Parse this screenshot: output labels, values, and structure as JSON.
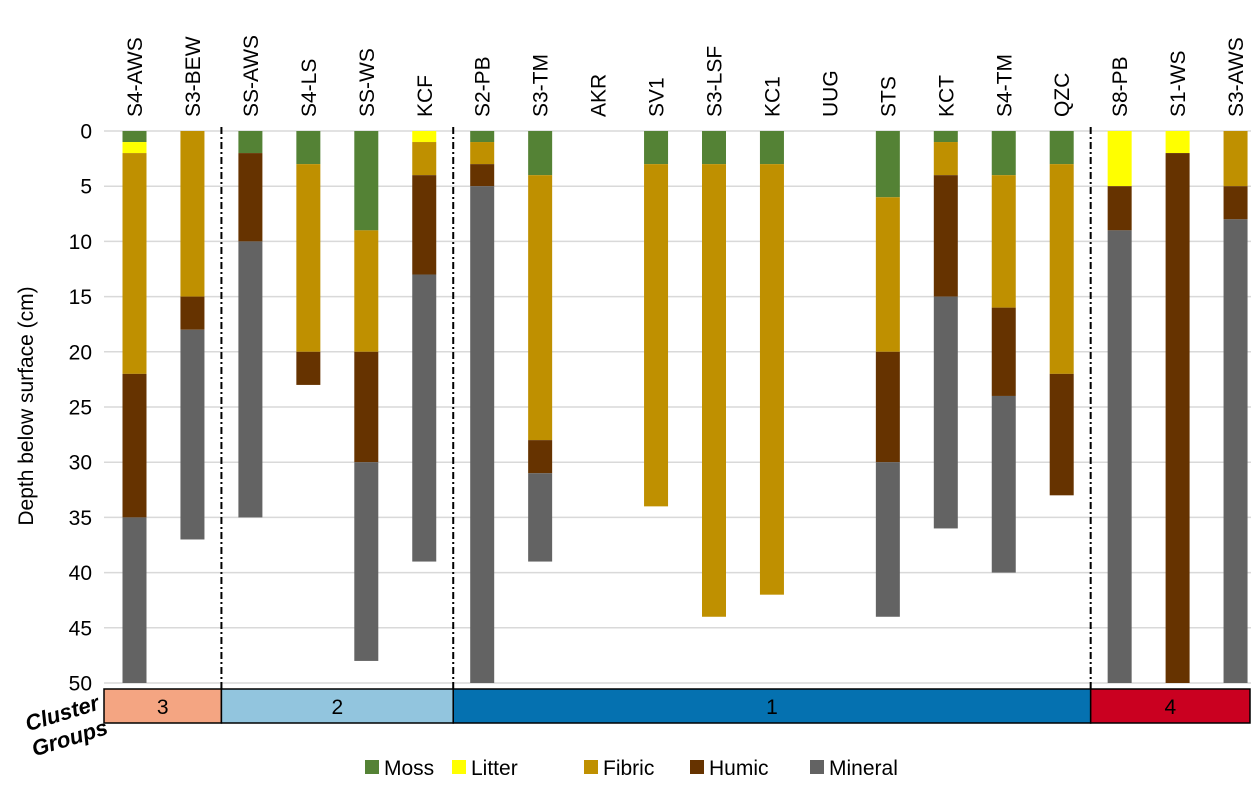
{
  "chart_data": {
    "type": "bar",
    "subtype": "stacked-depth-profile",
    "ylabel": "Depth below surface (cm)",
    "y_axis_inverted": true,
    "ylim": [
      0,
      50
    ],
    "yticks": [
      0,
      5,
      10,
      15,
      20,
      25,
      30,
      35,
      40,
      45,
      50
    ],
    "grid": true,
    "legend_position": "bottom",
    "categories": [
      "S4-AWS",
      "S3-BEW",
      "SS-AWS",
      "S4-LS",
      "SS-WS",
      "KCF",
      "S2-PB",
      "S3-TM",
      "AKR",
      "SV1",
      "S3-LSF",
      "KC1",
      "UUG",
      "STS",
      "KCT",
      "S4-TM",
      "QZC",
      "S8-PB",
      "S1-WS",
      "S3-AWS"
    ],
    "layers": [
      {
        "name": "Moss",
        "color": "#548235"
      },
      {
        "name": "Litter",
        "color": "#FFFF00"
      },
      {
        "name": "Fibric",
        "color": "#BF9000"
      },
      {
        "name": "Humic",
        "color": "#663300"
      },
      {
        "name": "Mineral",
        "color": "#636363"
      }
    ],
    "profiles": [
      [
        {
          "layer": "Moss",
          "top": 0,
          "bottom": 1
        },
        {
          "layer": "Litter",
          "top": 1,
          "bottom": 2
        },
        {
          "layer": "Fibric",
          "top": 2,
          "bottom": 22
        },
        {
          "layer": "Humic",
          "top": 22,
          "bottom": 35
        },
        {
          "layer": "Mineral",
          "top": 35,
          "bottom": 50
        }
      ],
      [
        {
          "layer": "Fibric",
          "top": 0,
          "bottom": 15
        },
        {
          "layer": "Humic",
          "top": 15,
          "bottom": 18
        },
        {
          "layer": "Mineral",
          "top": 18,
          "bottom": 37
        }
      ],
      [
        {
          "layer": "Moss",
          "top": 0,
          "bottom": 2
        },
        {
          "layer": "Humic",
          "top": 2,
          "bottom": 10
        },
        {
          "layer": "Mineral",
          "top": 10,
          "bottom": 35
        }
      ],
      [
        {
          "layer": "Moss",
          "top": 0,
          "bottom": 3
        },
        {
          "layer": "Fibric",
          "top": 3,
          "bottom": 20
        },
        {
          "layer": "Humic",
          "top": 20,
          "bottom": 23
        }
      ],
      [
        {
          "layer": "Moss",
          "top": 0,
          "bottom": 9
        },
        {
          "layer": "Fibric",
          "top": 9,
          "bottom": 20
        },
        {
          "layer": "Humic",
          "top": 20,
          "bottom": 30
        },
        {
          "layer": "Mineral",
          "top": 30,
          "bottom": 48
        }
      ],
      [
        {
          "layer": "Litter",
          "top": 0,
          "bottom": 1
        },
        {
          "layer": "Fibric",
          "top": 1,
          "bottom": 4
        },
        {
          "layer": "Humic",
          "top": 4,
          "bottom": 13
        },
        {
          "layer": "Mineral",
          "top": 13,
          "bottom": 39
        }
      ],
      [
        {
          "layer": "Moss",
          "top": 0,
          "bottom": 1
        },
        {
          "layer": "Fibric",
          "top": 1,
          "bottom": 3
        },
        {
          "layer": "Humic",
          "top": 3,
          "bottom": 5
        },
        {
          "layer": "Mineral",
          "top": 5,
          "bottom": 50
        }
      ],
      [
        {
          "layer": "Moss",
          "top": 0,
          "bottom": 4
        },
        {
          "layer": "Fibric",
          "top": 4,
          "bottom": 28
        },
        {
          "layer": "Humic",
          "top": 28,
          "bottom": 31
        },
        {
          "layer": "Mineral",
          "top": 31,
          "bottom": 39
        }
      ],
      [],
      [
        {
          "layer": "Moss",
          "top": 0,
          "bottom": 3
        },
        {
          "layer": "Fibric",
          "top": 3,
          "bottom": 34
        }
      ],
      [
        {
          "layer": "Moss",
          "top": 0,
          "bottom": 3
        },
        {
          "layer": "Fibric",
          "top": 3,
          "bottom": 44
        }
      ],
      [
        {
          "layer": "Moss",
          "top": 0,
          "bottom": 3
        },
        {
          "layer": "Fibric",
          "top": 3,
          "bottom": 42
        }
      ],
      [],
      [
        {
          "layer": "Moss",
          "top": 0,
          "bottom": 6
        },
        {
          "layer": "Fibric",
          "top": 6,
          "bottom": 20
        },
        {
          "layer": "Humic",
          "top": 20,
          "bottom": 30
        },
        {
          "layer": "Mineral",
          "top": 30,
          "bottom": 44
        }
      ],
      [
        {
          "layer": "Moss",
          "top": 0,
          "bottom": 1
        },
        {
          "layer": "Fibric",
          "top": 1,
          "bottom": 4
        },
        {
          "layer": "Humic",
          "top": 4,
          "bottom": 15
        },
        {
          "layer": "Mineral",
          "top": 15,
          "bottom": 36
        }
      ],
      [
        {
          "layer": "Moss",
          "top": 0,
          "bottom": 4
        },
        {
          "layer": "Fibric",
          "top": 4,
          "bottom": 16
        },
        {
          "layer": "Humic",
          "top": 16,
          "bottom": 24
        },
        {
          "layer": "Mineral",
          "top": 24,
          "bottom": 40
        }
      ],
      [
        {
          "layer": "Moss",
          "top": 0,
          "bottom": 3
        },
        {
          "layer": "Fibric",
          "top": 3,
          "bottom": 22
        },
        {
          "layer": "Humic",
          "top": 22,
          "bottom": 33
        }
      ],
      [
        {
          "layer": "Litter",
          "top": 0,
          "bottom": 5
        },
        {
          "layer": "Humic",
          "top": 5,
          "bottom": 9
        },
        {
          "layer": "Mineral",
          "top": 9,
          "bottom": 50
        }
      ],
      [
        {
          "layer": "Litter",
          "top": 0,
          "bottom": 2
        },
        {
          "layer": "Humic",
          "top": 2,
          "bottom": 50
        }
      ],
      [
        {
          "layer": "Fibric",
          "top": 0,
          "bottom": 5
        },
        {
          "layer": "Humic",
          "top": 5,
          "bottom": 8
        },
        {
          "layer": "Mineral",
          "top": 8,
          "bottom": 50
        }
      ]
    ],
    "cluster_groups": {
      "title": "Cluster Groups",
      "groups": [
        {
          "label": "3",
          "first": 0,
          "last": 1,
          "color": "#F4A582"
        },
        {
          "label": "2",
          "first": 2,
          "last": 5,
          "color": "#92C5DE"
        },
        {
          "label": "1",
          "first": 6,
          "last": 16,
          "color": "#0571B0"
        },
        {
          "label": "4",
          "first": 17,
          "last": 19,
          "color": "#CA0020"
        }
      ]
    }
  }
}
